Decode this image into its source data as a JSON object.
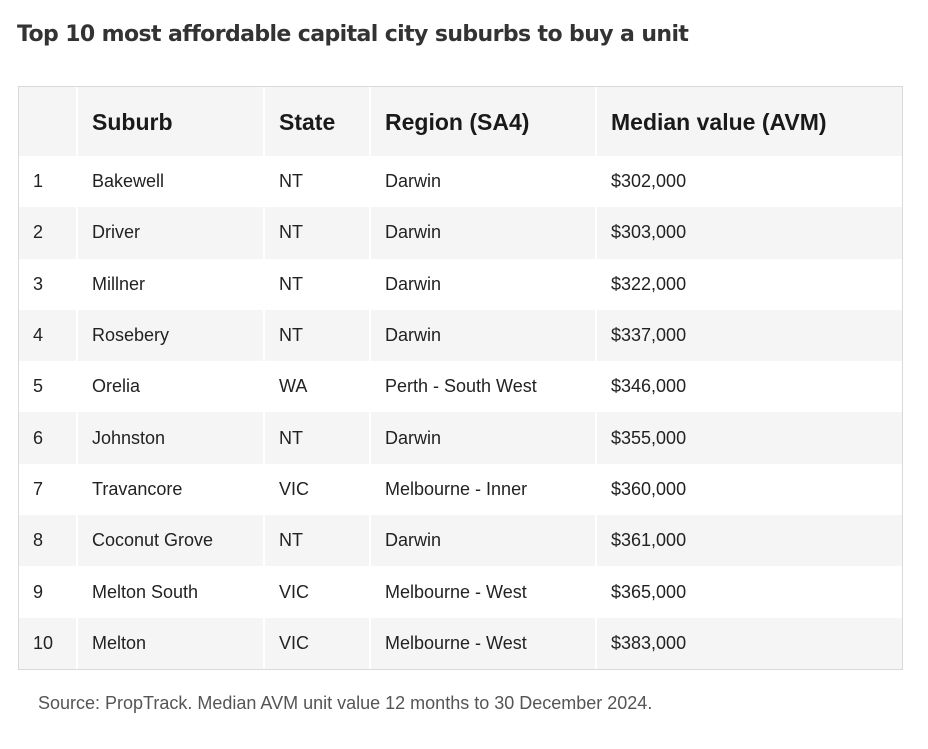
{
  "title": "Top 10 most affordable capital city suburbs to buy a unit",
  "table": {
    "headers": [
      "",
      "Suburb",
      "State",
      "Region (SA4)",
      "Median value (AVM)"
    ],
    "rows": [
      [
        "1",
        "Bakewell",
        "NT",
        "Darwin",
        "$302,000"
      ],
      [
        "2",
        "Driver",
        "NT",
        "Darwin",
        "$303,000"
      ],
      [
        "3",
        "Millner",
        "NT",
        "Darwin",
        "$322,000"
      ],
      [
        "4",
        "Rosebery",
        "NT",
        "Darwin",
        "$337,000"
      ],
      [
        "5",
        "Orelia",
        "WA",
        "Perth - South West",
        "$346,000"
      ],
      [
        "6",
        "Johnston",
        "NT",
        "Darwin",
        "$355,000"
      ],
      [
        "7",
        "Travancore",
        "VIC",
        "Melbourne - Inner",
        "$360,000"
      ],
      [
        "8",
        "Coconut Grove",
        "NT",
        "Darwin",
        "$361,000"
      ],
      [
        "9",
        "Melton South",
        "VIC",
        "Melbourne - West",
        "$365,000"
      ],
      [
        "10",
        "Melton",
        "VIC",
        "Melbourne - West",
        "$383,000"
      ]
    ]
  },
  "source": "Source: PropTrack. Median AVM unit value 12 months to 30 December 2024.",
  "colors": {
    "title": "#333333",
    "stripe": "#f5f5f5",
    "border": "#d9d9d9",
    "source_text": "#555555"
  }
}
